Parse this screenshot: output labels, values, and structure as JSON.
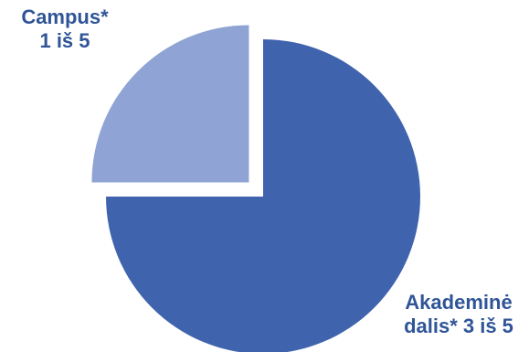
{
  "chart_data": {
    "type": "pie",
    "exploded": "Campus*",
    "slices": [
      {
        "name": "Akademinė dalis*",
        "value": 3,
        "label_lines": [
          "Akademinė",
          "dalis* 3 iš 5"
        ],
        "color": "#3f64ad",
        "label_color": "#2f5597"
      },
      {
        "name": "Campus*",
        "value": 1,
        "label_lines": [
          "Campus*",
          "1 iš 5"
        ],
        "color": "#8fa4d4",
        "label_color": "#2f5597"
      }
    ]
  }
}
